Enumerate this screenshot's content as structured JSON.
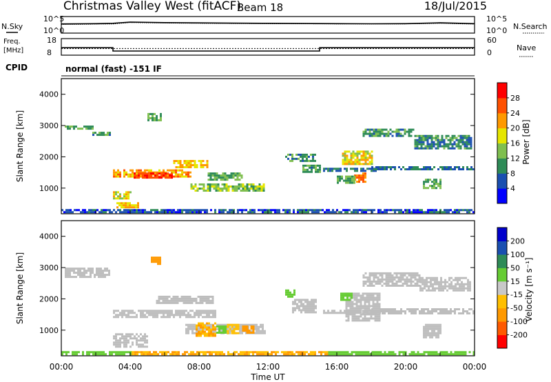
{
  "header": {
    "site": "Christmas Valley West (fitACF)",
    "beam": "Beam 18",
    "date": "18/Jul/2015"
  },
  "labels": {
    "nsky": "N.Sky",
    "nsearch": "N.Search",
    "freq_line1": "Freq.",
    "freq_line2": "[MHz]",
    "nave": "Nave",
    "cpid": "CPID",
    "cpid_value": "normal (fast) -151 IF",
    "time_label": "Time UT"
  },
  "colors": {
    "power_scale": [
      "#0000ff",
      "#1a4fb0",
      "#2e8b57",
      "#7fbf4f",
      "#e6e600",
      "#ff9900",
      "#ff5000",
      "#ff0000"
    ],
    "velocity_scale": [
      "#ff0000",
      "#ff5a00",
      "#ff9900",
      "#ffbf00",
      "#c8c8c8",
      "#66cc33",
      "#2e8b57",
      "#1a4fb0",
      "#0000cc"
    ],
    "ground_scatter": "#bdbdbd"
  },
  "chart_data": [
    {
      "type": "line",
      "name": "noise-panel",
      "x": [
        0,
        2,
        3,
        4,
        6,
        8,
        10,
        12,
        14,
        16,
        18,
        20,
        22,
        24
      ],
      "series": [
        {
          "values": [
            600,
            700,
            900,
            2200,
            1500,
            1200,
            1000,
            900,
            800,
            700,
            650,
            700,
            1300,
            700
          ]
        },
        {
          "values": [
            400,
            500,
            600,
            1500,
            1100,
            900,
            800,
            700,
            650,
            600,
            550,
            600,
            900,
            500
          ]
        }
      ],
      "left_ticks": [
        "10^5",
        "10^0"
      ],
      "right_ticks": [
        "10^5",
        "10^0"
      ],
      "yscale": "log"
    },
    {
      "type": "line",
      "name": "freq-nave-panel",
      "x": [
        0,
        3,
        3,
        15,
        15,
        24
      ],
      "series": [
        {
          "values": [
            12.5,
            12.5,
            10.5,
            10.5,
            12.5,
            12.5
          ]
        },
        {
          "values": [
            24,
            24,
            24,
            24,
            24,
            24
          ]
        }
      ],
      "left_ticks": [
        "18",
        "8"
      ],
      "left_range": [
        8,
        18
      ],
      "right_ticks": [
        "60",
        "0"
      ],
      "right_range": [
        0,
        60
      ]
    },
    {
      "type": "heatmap",
      "name": "power-panel",
      "ylabel": "Slant Range [km]",
      "yticks": [
        "1000",
        "2000",
        "3000",
        "4000"
      ],
      "ytick_values": [
        1000,
        2000,
        3000,
        4000
      ],
      "ylim": [
        180,
        4500
      ],
      "xlim": [
        0,
        24
      ],
      "colorbar_label": "Power [dB]",
      "colorbar_ticks": [
        "4",
        "8",
        "12",
        "16",
        "20",
        "24",
        "28"
      ],
      "colorbar_range": [
        0,
        32
      ],
      "regions": [
        {
          "x": [
            0.2,
            1.8
          ],
          "y": [
            2900,
            3000
          ],
          "v": 12
        },
        {
          "x": [
            1.8,
            2.8
          ],
          "y": [
            2700,
            2800
          ],
          "v": 10
        },
        {
          "x": [
            3.0,
            7.5
          ],
          "y": [
            1400,
            1600
          ],
          "v": 22
        },
        {
          "x": [
            4.2,
            6.5
          ],
          "y": [
            1350,
            1500
          ],
          "v": 28
        },
        {
          "x": [
            6.5,
            8.5
          ],
          "y": [
            1700,
            1900
          ],
          "v": 20
        },
        {
          "x": [
            7.5,
            11.8
          ],
          "y": [
            950,
            1150
          ],
          "v": 14
        },
        {
          "x": [
            8.5,
            10.5
          ],
          "y": [
            1300,
            1500
          ],
          "v": 12
        },
        {
          "x": [
            3.0,
            4.0
          ],
          "y": [
            700,
            900
          ],
          "v": 18
        },
        {
          "x": [
            3.2,
            4.5
          ],
          "y": [
            400,
            550
          ],
          "v": 20
        },
        {
          "x": [
            5.0,
            5.8
          ],
          "y": [
            3200,
            3400
          ],
          "v": 12
        },
        {
          "x": [
            13.0,
            14.8
          ],
          "y": [
            1900,
            2100
          ],
          "v": 10
        },
        {
          "x": [
            14.0,
            15.0
          ],
          "y": [
            1500,
            1750
          ],
          "v": 11
        },
        {
          "x": [
            15.2,
            18.5
          ],
          "y": [
            1550,
            1650
          ],
          "v": 8
        },
        {
          "x": [
            16.3,
            18.0
          ],
          "y": [
            1800,
            2200
          ],
          "v": 18
        },
        {
          "x": [
            17.0,
            17.7
          ],
          "y": [
            1200,
            1500
          ],
          "v": 24
        },
        {
          "x": [
            18.0,
            24.0
          ],
          "y": [
            1600,
            1700
          ],
          "v": 8
        },
        {
          "x": [
            17.5,
            20.5
          ],
          "y": [
            2700,
            2900
          ],
          "v": 10
        },
        {
          "x": [
            20.5,
            23.8
          ],
          "y": [
            2300,
            2700
          ],
          "v": 9
        },
        {
          "x": [
            21.0,
            22.0
          ],
          "y": [
            1000,
            1300
          ],
          "v": 12
        },
        {
          "x": [
            16.0,
            17.0
          ],
          "y": [
            1200,
            1400
          ],
          "v": 12
        },
        {
          "x": [
            0.0,
            24.0
          ],
          "y": [
            200,
            330
          ],
          "v": 6
        }
      ]
    },
    {
      "type": "heatmap",
      "name": "velocity-panel",
      "ylabel": "Slant Range [km]",
      "yticks": [
        "1000",
        "2000",
        "3000",
        "4000"
      ],
      "ytick_values": [
        1000,
        2000,
        3000,
        4000
      ],
      "ylim": [
        180,
        4500
      ],
      "xlim": [
        0,
        24
      ],
      "xticks": [
        "00:00",
        "04:00",
        "08:00",
        "12:00",
        "16:00",
        "20:00",
        "00:00"
      ],
      "xtick_values": [
        0,
        4,
        8,
        12,
        16,
        20,
        24
      ],
      "xlabel": "Time UT",
      "colorbar_label": "Velocity [m s⁻¹]",
      "colorbar_ticks": [
        "-200",
        "-100",
        "-50",
        "-15",
        "15",
        "50",
        "100",
        "200"
      ],
      "regions": [
        {
          "x": [
            0.2,
            2.8
          ],
          "y": [
            2700,
            3000
          ],
          "c": "gs"
        },
        {
          "x": [
            3.0,
            9.0
          ],
          "y": [
            1400,
            1650
          ],
          "c": "gs"
        },
        {
          "x": [
            5.5,
            8.8
          ],
          "y": [
            1850,
            2100
          ],
          "c": "gs"
        },
        {
          "x": [
            3.0,
            5.0
          ],
          "y": [
            500,
            900
          ],
          "c": "gs"
        },
        {
          "x": [
            7.2,
            11.8
          ],
          "y": [
            900,
            1200
          ],
          "c": "gs"
        },
        {
          "x": [
            7.8,
            9.0
          ],
          "y": [
            800,
            1250
          ],
          "v": -50
        },
        {
          "x": [
            9.5,
            10.3
          ],
          "y": [
            900,
            1200
          ],
          "v": -40
        },
        {
          "x": [
            10.5,
            11.2
          ],
          "y": [
            950,
            1150
          ],
          "v": -60
        },
        {
          "x": [
            9.0,
            9.5
          ],
          "y": [
            950,
            1150
          ],
          "v": 30
        },
        {
          "x": [
            5.2,
            5.8
          ],
          "y": [
            3150,
            3350
          ],
          "v": -80
        },
        {
          "x": [
            13.4,
            14.8
          ],
          "y": [
            1550,
            2000
          ],
          "c": "gs"
        },
        {
          "x": [
            15.2,
            18.5
          ],
          "y": [
            1550,
            1650
          ],
          "c": "gs"
        },
        {
          "x": [
            16.5,
            18.5
          ],
          "y": [
            1300,
            2200
          ],
          "c": "gs"
        },
        {
          "x": [
            18.0,
            24.0
          ],
          "y": [
            1550,
            1700
          ],
          "c": "gs"
        },
        {
          "x": [
            17.5,
            20.8
          ],
          "y": [
            2400,
            2850
          ],
          "c": "gs"
        },
        {
          "x": [
            20.8,
            23.8
          ],
          "y": [
            2250,
            2700
          ],
          "c": "gs"
        },
        {
          "x": [
            21.0,
            22.0
          ],
          "y": [
            750,
            1200
          ],
          "c": "gs"
        },
        {
          "x": [
            4.0,
            15.5
          ],
          "y": [
            200,
            330
          ],
          "v": -50
        },
        {
          "x": [
            15.5,
            24.0
          ],
          "y": [
            200,
            330
          ],
          "v": 40
        },
        {
          "x": [
            0.0,
            4.0
          ],
          "y": [
            200,
            330
          ],
          "v": 30
        },
        {
          "x": [
            13.0,
            13.5
          ],
          "y": [
            2100,
            2300
          ],
          "v": 40
        },
        {
          "x": [
            16.2,
            16.8
          ],
          "y": [
            2000,
            2200
          ],
          "v": 40
        }
      ]
    }
  ]
}
